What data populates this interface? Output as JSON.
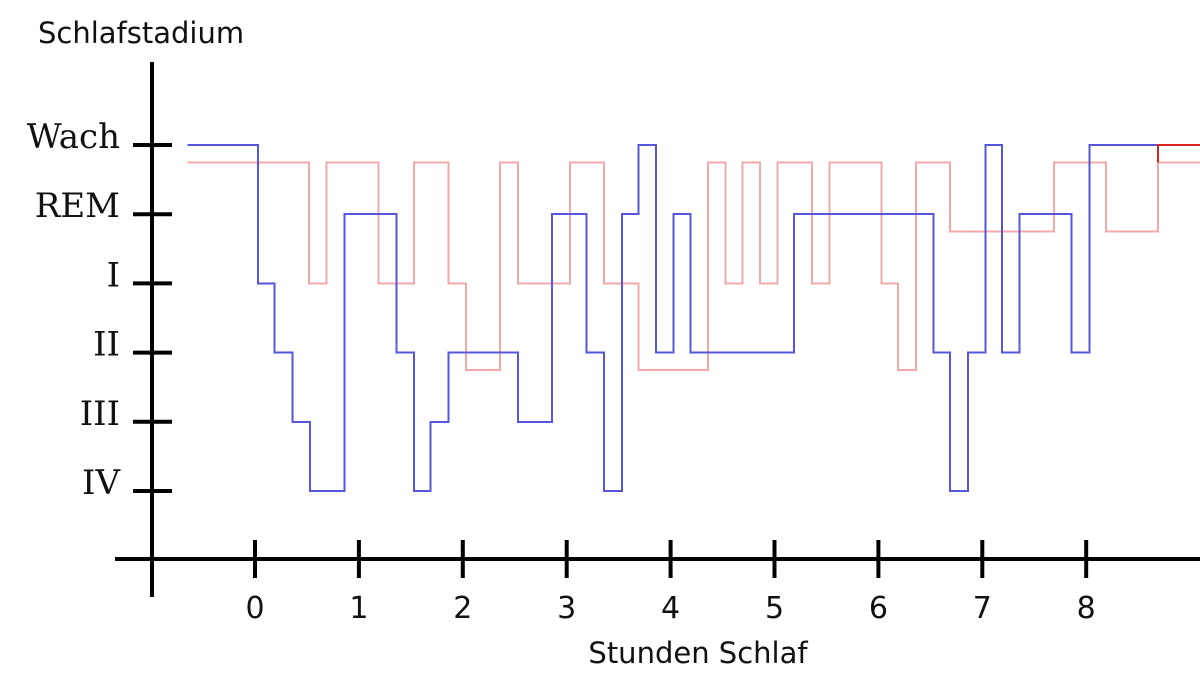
{
  "chart_data": {
    "type": "line",
    "title": "",
    "ylabel": "Schlafstadium",
    "xlabel": "Stunden Schlaf",
    "x_ticks": [
      "0",
      "1",
      "2",
      "3",
      "4",
      "5",
      "6",
      "7",
      "8"
    ],
    "y_ticks": [
      "Wach",
      "REM",
      "I",
      "II",
      "III",
      "IV"
    ],
    "xlim": [
      -0.65,
      9.2
    ],
    "grid": false,
    "series": [
      {
        "color": "#f0a8a8",
        "style": "step",
        "points": [
          [
            -0.65,
            0.25
          ],
          [
            0.52,
            0.25
          ],
          [
            0.52,
            2
          ],
          [
            0.69,
            2
          ],
          [
            0.69,
            0.25
          ],
          [
            1.19,
            0.25
          ],
          [
            1.19,
            2
          ],
          [
            1.53,
            2
          ],
          [
            1.53,
            0.25
          ],
          [
            1.86,
            0.25
          ],
          [
            1.86,
            2
          ],
          [
            2.03,
            2
          ],
          [
            2.03,
            3.25
          ],
          [
            2.36,
            3.25
          ],
          [
            2.36,
            0.25
          ],
          [
            2.53,
            0.25
          ],
          [
            2.53,
            2
          ],
          [
            3.03,
            2
          ],
          [
            3.03,
            0.25
          ],
          [
            3.36,
            0.25
          ],
          [
            3.36,
            2
          ],
          [
            3.69,
            2
          ],
          [
            3.69,
            3.25
          ],
          [
            4.36,
            3.25
          ],
          [
            4.36,
            0.25
          ],
          [
            4.53,
            0.25
          ],
          [
            4.53,
            2
          ],
          [
            4.69,
            2
          ],
          [
            4.69,
            0.25
          ],
          [
            4.86,
            0.25
          ],
          [
            4.86,
            2
          ],
          [
            5.03,
            2
          ],
          [
            5.03,
            0.25
          ],
          [
            5.36,
            0.25
          ],
          [
            5.36,
            2
          ],
          [
            5.53,
            2
          ],
          [
            5.53,
            0.25
          ],
          [
            6.03,
            0.25
          ],
          [
            6.03,
            2
          ],
          [
            6.19,
            2
          ],
          [
            6.19,
            3.25
          ],
          [
            6.36,
            3.25
          ],
          [
            6.36,
            0.25
          ],
          [
            6.69,
            0.25
          ],
          [
            6.69,
            1.25
          ],
          [
            7.69,
            1.25
          ],
          [
            7.69,
            0.25
          ],
          [
            8.19,
            0.25
          ],
          [
            8.19,
            1.25
          ],
          [
            8.69,
            1.25
          ],
          [
            8.69,
            0.25
          ],
          [
            9.2,
            0.25
          ]
        ]
      },
      {
        "color": "#5555dd",
        "style": "step",
        "points": [
          [
            -0.65,
            0
          ],
          [
            0.03,
            0
          ],
          [
            0.03,
            2
          ],
          [
            0.19,
            2
          ],
          [
            0.19,
            3
          ],
          [
            0.36,
            3
          ],
          [
            0.36,
            4
          ],
          [
            0.53,
            4
          ],
          [
            0.53,
            5
          ],
          [
            0.86,
            5
          ],
          [
            0.86,
            1
          ],
          [
            1.36,
            1
          ],
          [
            1.36,
            3
          ],
          [
            1.53,
            3
          ],
          [
            1.53,
            5
          ],
          [
            1.69,
            5
          ],
          [
            1.69,
            4
          ],
          [
            1.86,
            4
          ],
          [
            1.86,
            3
          ],
          [
            2.53,
            3
          ],
          [
            2.53,
            4
          ],
          [
            2.86,
            4
          ],
          [
            2.86,
            1
          ],
          [
            3.19,
            1
          ],
          [
            3.19,
            3
          ],
          [
            3.36,
            3
          ],
          [
            3.36,
            5
          ],
          [
            3.53,
            5
          ],
          [
            3.53,
            1
          ],
          [
            3.69,
            1
          ],
          [
            3.69,
            0
          ],
          [
            3.86,
            0
          ],
          [
            3.86,
            3
          ],
          [
            4.03,
            3
          ],
          [
            4.03,
            1
          ],
          [
            4.19,
            1
          ],
          [
            4.19,
            3
          ],
          [
            5.19,
            3
          ],
          [
            5.19,
            1
          ],
          [
            6.53,
            1
          ],
          [
            6.53,
            3
          ],
          [
            6.69,
            3
          ],
          [
            6.69,
            5
          ],
          [
            6.86,
            5
          ],
          [
            6.86,
            3
          ],
          [
            7.03,
            3
          ],
          [
            7.03,
            0
          ],
          [
            7.19,
            0
          ],
          [
            7.19,
            3
          ],
          [
            7.36,
            3
          ],
          [
            7.36,
            1
          ],
          [
            7.86,
            1
          ],
          [
            7.86,
            3
          ],
          [
            8.03,
            3
          ],
          [
            8.03,
            0
          ],
          [
            9.2,
            0
          ]
        ]
      },
      {
        "color": "#dd2222",
        "style": "step",
        "points": [
          [
            8.69,
            0.25
          ],
          [
            8.69,
            0.0
          ],
          [
            9.2,
            0.0
          ]
        ]
      }
    ]
  }
}
